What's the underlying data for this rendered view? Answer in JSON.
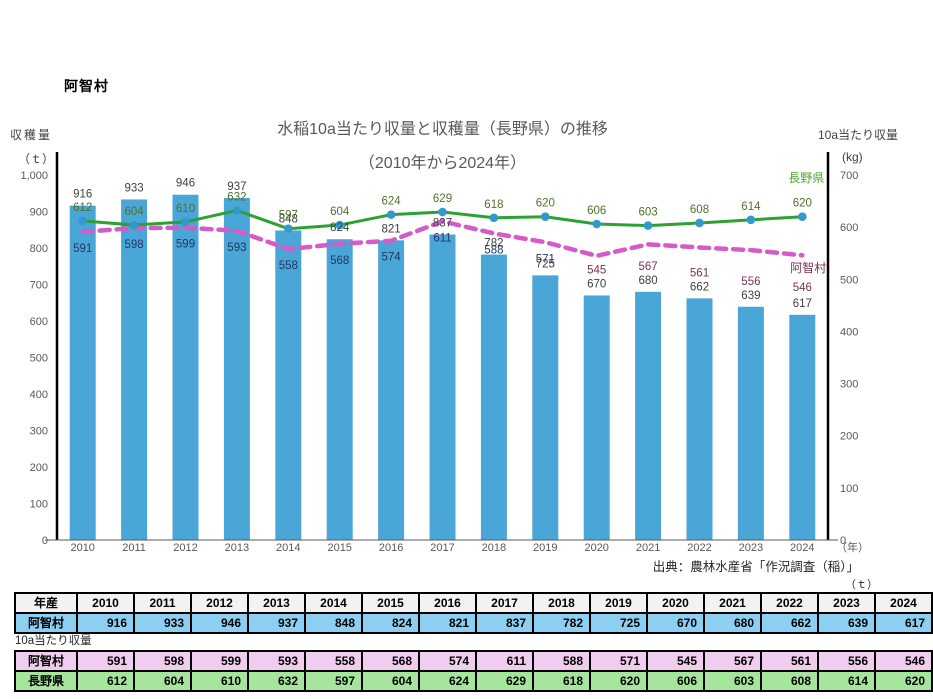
{
  "header": {
    "area_label": "阿智村"
  },
  "chart": {
    "title_line1": "水稲10a当たり収量と収穫量（長野県）の推移",
    "title_line2": "（2010年から2024年）",
    "left_axis_label": "収穫量",
    "left_axis_unit": "（ｔ）",
    "right_axis_label": "10a当たり収量",
    "right_axis_unit": "(kg)",
    "x_axis_unit": "（年）",
    "nagano_end_label": "長野県",
    "achi_end_label": "阿智村",
    "source": "出典：農林水産省「作況調査（稲）」"
  },
  "chart_data": {
    "type": "bar",
    "subtype": "bar+line combo, dual axis",
    "categories": [
      2010,
      2011,
      2012,
      2013,
      2014,
      2015,
      2016,
      2017,
      2018,
      2019,
      2020,
      2021,
      2022,
      2023,
      2024
    ],
    "series": [
      {
        "name": "収穫量（阿智村）",
        "type": "bar",
        "axis": "left",
        "unit": "t",
        "color": "#4ba6d8",
        "values": [
          916,
          933,
          946,
          937,
          848,
          824,
          821,
          837,
          782,
          725,
          670,
          680,
          662,
          639,
          617
        ]
      },
      {
        "name": "長野県 10a当たり収量",
        "type": "line",
        "axis": "right",
        "unit": "kg",
        "color": "#2ca233",
        "marker_color": "#3399cc",
        "values": [
          612,
          604,
          610,
          632,
          597,
          604,
          624,
          629,
          618,
          620,
          606,
          603,
          608,
          614,
          620
        ]
      },
      {
        "name": "阿智村 10a当たり収量",
        "type": "dashed-line",
        "axis": "right",
        "unit": "kg",
        "color": "#d45bc8",
        "values": [
          591,
          598,
          599,
          593,
          558,
          568,
          574,
          611,
          588,
          571,
          545,
          567,
          561,
          556,
          546
        ]
      }
    ],
    "left_axis": {
      "min": 0,
      "max": 1000,
      "tick_step": 100,
      "max_tick_label": "1,000"
    },
    "right_axis": {
      "min": 0,
      "max": 700,
      "tick_step": 100
    },
    "grid": false,
    "legend_position": "inline end labels (長野県 / 阿智村) at right of lines",
    "label_colors": {
      "bar_labels": "#404040",
      "nagano_labels": "#50702b",
      "achi_labels_on_bar": "#1f3864",
      "achi_labels_off_bar": "#7c3150",
      "tick_labels": "#595959",
      "nagano_end_label": "#4ea72e",
      "achi_end_label": "#7c3150"
    }
  },
  "harvest_table": {
    "unit_label": "（ｔ）",
    "corner": "年産",
    "row_label": "阿智村"
  },
  "yield_section_label": "10a当たり収量",
  "yield_table": {
    "row1_label": "阿智村",
    "row2_label": "長野県"
  }
}
